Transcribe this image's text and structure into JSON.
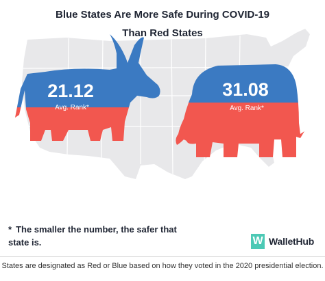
{
  "title_line1": "Blue States Are More Safe During COVID-19",
  "title_line2": "Than Red States",
  "footnote": {
    "star": "*",
    "text": "The smaller the number, the safer that state is."
  },
  "brand": {
    "logo_letter": "W",
    "name": "WalletHub"
  },
  "caption": "States are designated as Red or Blue based on how they voted in the 2020 presidential election.",
  "colors": {
    "blue": "#3b7ac2",
    "red": "#f2574f",
    "map": "#e8e8ea",
    "map_border": "#ffffff",
    "brand_green": "#4cc9b5"
  },
  "icons": [
    "donkey-icon",
    "elephant-icon",
    "usa-map-icon"
  ],
  "chart_data": {
    "type": "bar",
    "categories": [
      "Blue States",
      "Red States"
    ],
    "values": [
      21.12,
      31.08
    ],
    "value_labels": [
      "21.12",
      "31.08"
    ],
    "sublabels": [
      "Avg. Rank*",
      "Avg. Rank*"
    ],
    "title": "Blue States Are More Safe During COVID-19 Than Red States"
  }
}
